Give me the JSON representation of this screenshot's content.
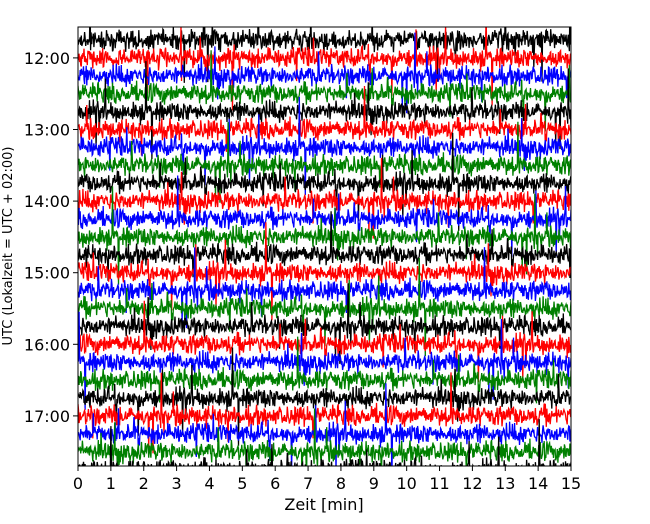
{
  "chart_data": {
    "type": "line",
    "title": "",
    "xlabel": "Zeit  [min]",
    "ylabel": "UTC (Lokalzeit = UTC + 02:00)",
    "xlim": [
      0,
      15
    ],
    "x_ticks": [
      "0",
      "1",
      "2",
      "3",
      "4",
      "5",
      "6",
      "7",
      "8",
      "9",
      "10",
      "11",
      "12",
      "13",
      "14",
      "15"
    ],
    "y_ticks": [
      "12:00",
      "13:00",
      "14:00",
      "15:00",
      "16:00",
      "17:00"
    ],
    "grid": false,
    "legend": "none",
    "series_colors": [
      "#000000",
      "#ff0000",
      "#0000ff",
      "#008000"
    ],
    "series_description": "Helicorder seismogram: one 15-minute trace per row, starting rows from 11:45 to 17:45 UTC, colors cycle black, red, blue, green",
    "row_start_times": [
      "11:45",
      "12:00",
      "12:15",
      "12:30",
      "12:45",
      "13:00",
      "13:15",
      "13:30",
      "13:45",
      "14:00",
      "14:15",
      "14:30",
      "14:45",
      "15:00",
      "15:15",
      "15:30",
      "15:45",
      "16:00",
      "16:15",
      "16:30",
      "16:45",
      "17:00",
      "17:15",
      "17:30",
      "17:45"
    ]
  }
}
